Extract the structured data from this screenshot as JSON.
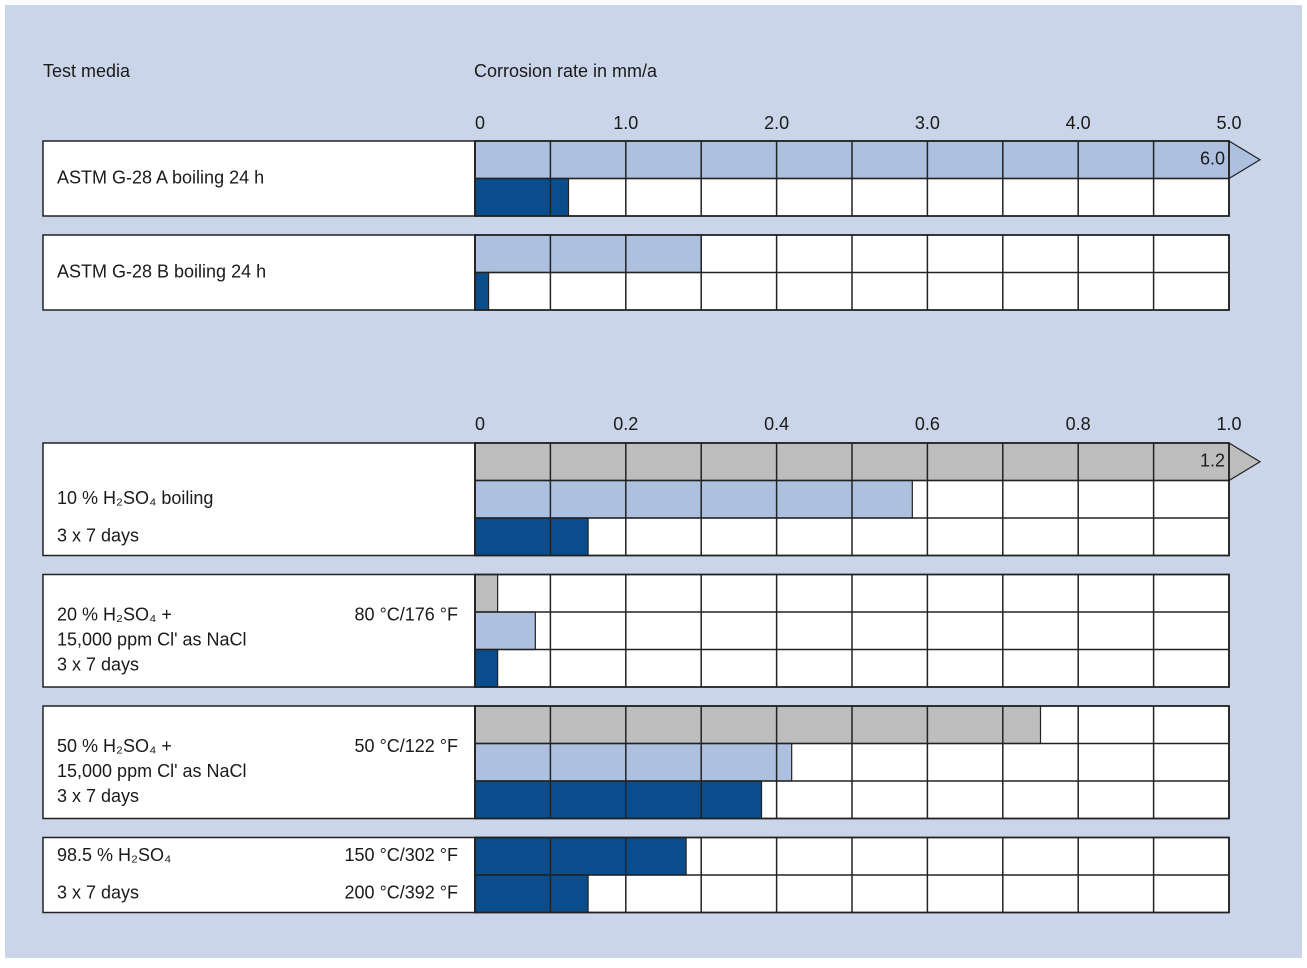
{
  "row_header": "Test media",
  "chart_data": [
    {
      "type": "bar",
      "xlabel": "Corrosion rate in mm/a",
      "xlim": [
        0,
        5
      ],
      "xticks": [
        0,
        {
          "value": 1,
          "label": "1.0"
        },
        {
          "value": 2,
          "label": "2.0"
        },
        {
          "value": 3,
          "label": "3.0"
        },
        {
          "value": 4,
          "label": "4.0"
        },
        {
          "value": 5,
          "label": "5.0"
        }
      ],
      "grid": true,
      "minor_grid": true,
      "rows": [
        {
          "lines": [
            "ASTM G-28 A boiling 24 h"
          ],
          "bars": [
            {
              "color": "#adc0e0",
              "value": 6,
              "value_label": "6.0"
            },
            {
              "color": "#0a4d8c",
              "value": 0.62
            }
          ]
        },
        {
          "lines": [
            "ASTM G-28 B boiling 24 h"
          ],
          "bars": [
            {
              "color": "#adc0e0",
              "value": 1.5
            },
            {
              "color": "#0a4d8c",
              "value": 0.09
            }
          ]
        }
      ]
    },
    {
      "type": "bar",
      "xlim": [
        0,
        1
      ],
      "xticks": [
        0,
        0.2,
        0.4,
        0.6,
        0.8,
        {
          "value": 1,
          "label": "1.0"
        }
      ],
      "grid": true,
      "minor_grid": true,
      "rows": [
        {
          "lines": [
            "10 % H₂SO₄ boiling",
            "3 x 7 days"
          ],
          "bars": [
            {
              "color": "#bdbdbd",
              "value": 1.2,
              "value_label": "1.2"
            },
            {
              "color": "#adc0e0",
              "value": 0.58
            },
            {
              "color": "#0a4d8c",
              "value": 0.15
            }
          ]
        },
        {
          "lines": [
            "20 % H₂SO₄ +",
            "15,000 ppm Cl' as NaCl",
            "3 x 7 days"
          ],
          "temperatures": [
            "80 °C/176 °F"
          ],
          "bars": [
            {
              "color": "#bdbdbd",
              "value": 0.03
            },
            {
              "color": "#adc0e0",
              "value": 0.08
            },
            {
              "color": "#0a4d8c",
              "value": 0.03
            }
          ]
        },
        {
          "lines": [
            "50 % H₂SO₄ +",
            "15,000 ppm Cl' as NaCl",
            "3 x 7 days"
          ],
          "temperatures": [
            "50 °C/122 °F"
          ],
          "bars": [
            {
              "color": "#bdbdbd",
              "value": 0.75
            },
            {
              "color": "#adc0e0",
              "value": 0.42
            },
            {
              "color": "#0a4d8c",
              "value": 0.38
            }
          ]
        },
        {
          "lines": [
            "98.5 % H₂SO₄",
            "3 x 7 days"
          ],
          "temperatures": [
            "150 °C/302 °F",
            "200 °C/392 °F"
          ],
          "bars": [
            {
              "color": "#0a4d8c",
              "value": 0.28
            },
            {
              "color": "#0a4d8c",
              "value": 0.15
            }
          ]
        }
      ]
    }
  ]
}
